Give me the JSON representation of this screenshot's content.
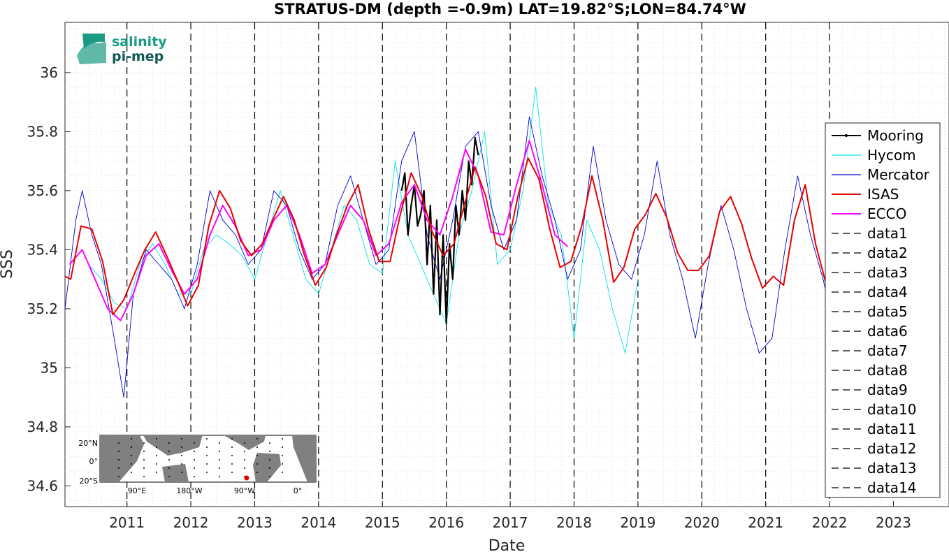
{
  "chart_data": {
    "type": "line",
    "title": "STRATUS-DM (depth =-0.9m) LAT=19.82°S;LON=84.74°W",
    "xlabel": "Date",
    "ylabel": "SSS",
    "xlim": [
      2010.03,
      2023.87
    ],
    "ylim": [
      34.53,
      36.17
    ],
    "x_ticks": [
      2011,
      2012,
      2013,
      2014,
      2015,
      2016,
      2017,
      2018,
      2019,
      2020,
      2021,
      2022,
      2023
    ],
    "x_tick_labels": [
      "2011",
      "2012",
      "2013",
      "2014",
      "2015",
      "2016",
      "2017",
      "2018",
      "2019",
      "2020",
      "2021",
      "2022",
      "2023"
    ],
    "y_ticks": [
      34.6,
      34.8,
      35.0,
      35.2,
      35.4,
      35.6,
      35.8,
      36.0
    ],
    "y_tick_labels": [
      "34.6",
      "34.8",
      "35",
      "35.2",
      "35.4",
      "35.6",
      "35.8",
      "36"
    ],
    "grid": "minor dotted",
    "legend_position": "right",
    "vlines": [
      2011,
      2012,
      2013,
      2014,
      2015,
      2016,
      2017,
      2018,
      2019,
      2020,
      2021,
      2022
    ],
    "series": [
      {
        "name": "Mooring",
        "color": "#000000",
        "style": "solid-dots",
        "x": [
          2015.3,
          2015.35,
          2015.4,
          2015.45,
          2015.5,
          2015.55,
          2015.6,
          2015.65,
          2015.7,
          2015.75,
          2015.8,
          2015.85,
          2015.9,
          2015.95,
          2016.0,
          2016.05,
          2016.1,
          2016.15,
          2016.2,
          2016.25,
          2016.3,
          2016.35,
          2016.4,
          2016.45,
          2016.5
        ],
        "y": [
          35.6,
          35.66,
          35.45,
          35.55,
          35.62,
          35.48,
          35.52,
          35.6,
          35.35,
          35.55,
          35.25,
          35.5,
          35.18,
          35.45,
          35.15,
          35.42,
          35.3,
          35.55,
          35.45,
          35.6,
          35.5,
          35.7,
          35.62,
          35.78,
          35.72
        ]
      },
      {
        "name": "Hycom",
        "color": "#00e5e5",
        "style": "solid",
        "x": [
          2010.4,
          2010.6,
          2010.8,
          2011.0,
          2011.2,
          2011.4,
          2011.6,
          2011.8,
          2012.0,
          2012.2,
          2012.4,
          2012.6,
          2012.8,
          2013.0,
          2013.2,
          2013.4,
          2013.6,
          2013.8,
          2014.0,
          2014.2,
          2014.4,
          2014.6,
          2014.8,
          2015.0,
          2015.2,
          2015.4,
          2015.6,
          2015.8,
          2016.0,
          2016.2,
          2016.4,
          2016.6,
          2016.8,
          2017.0,
          2017.2,
          2017.4,
          2017.6,
          2017.8,
          2018.0,
          2018.2,
          2018.4,
          2018.6,
          2018.8,
          2019.0
        ],
        "y": [
          35.35,
          35.3,
          35.22,
          35.2,
          35.35,
          35.42,
          35.35,
          35.25,
          35.25,
          35.4,
          35.45,
          35.42,
          35.38,
          35.3,
          35.45,
          35.6,
          35.45,
          35.3,
          35.25,
          35.4,
          35.55,
          35.5,
          35.35,
          35.32,
          35.7,
          35.45,
          35.35,
          35.25,
          35.15,
          35.45,
          35.6,
          35.8,
          35.35,
          35.4,
          35.6,
          35.95,
          35.55,
          35.45,
          35.1,
          35.5,
          35.4,
          35.2,
          35.05,
          35.3
        ]
      },
      {
        "name": "Mercator",
        "color": "#0000cd",
        "style": "solid",
        "x": [
          2010.03,
          2010.2,
          2010.3,
          2010.45,
          2010.6,
          2010.8,
          2010.95,
          2011.1,
          2011.3,
          2011.5,
          2011.7,
          2011.9,
          2012.1,
          2012.3,
          2012.5,
          2012.7,
          2012.9,
          2013.1,
          2013.3,
          2013.5,
          2013.7,
          2013.9,
          2014.1,
          2014.3,
          2014.5,
          2014.7,
          2014.9,
          2015.1,
          2015.3,
          2015.5,
          2015.7,
          2015.9,
          2016.1,
          2016.3,
          2016.5,
          2016.7,
          2016.9,
          2017.1,
          2017.3,
          2017.5,
          2017.7,
          2017.9,
          2018.1,
          2018.3,
          2018.5,
          2018.7,
          2018.9,
          2019.1,
          2019.3,
          2019.5,
          2019.7,
          2019.9,
          2020.1,
          2020.3,
          2020.5,
          2020.7,
          2020.9,
          2021.1,
          2021.3,
          2021.5,
          2021.7,
          2021.9,
          2022.0
        ],
        "y": [
          35.2,
          35.5,
          35.6,
          35.45,
          35.35,
          35.1,
          34.9,
          35.25,
          35.4,
          35.35,
          35.3,
          35.2,
          35.35,
          35.6,
          35.5,
          35.45,
          35.35,
          35.4,
          35.6,
          35.55,
          35.4,
          35.3,
          35.35,
          35.55,
          35.65,
          35.5,
          35.35,
          35.4,
          35.7,
          35.8,
          35.45,
          35.3,
          35.5,
          35.75,
          35.8,
          35.55,
          35.4,
          35.5,
          35.85,
          35.65,
          35.5,
          35.3,
          35.4,
          35.75,
          35.5,
          35.35,
          35.3,
          35.45,
          35.7,
          35.45,
          35.3,
          35.1,
          35.35,
          35.55,
          35.4,
          35.2,
          35.05,
          35.1,
          35.4,
          35.65,
          35.45,
          35.3,
          35.2
        ]
      },
      {
        "name": "ISAS",
        "color": "#e60000",
        "style": "solid",
        "x": [
          2010.03,
          2010.12,
          2010.28,
          2010.45,
          2010.62,
          2010.78,
          2010.95,
          2011.12,
          2011.28,
          2011.45,
          2011.62,
          2011.78,
          2011.95,
          2012.12,
          2012.28,
          2012.45,
          2012.62,
          2012.78,
          2012.95,
          2013.12,
          2013.28,
          2013.45,
          2013.62,
          2013.78,
          2013.95,
          2014.12,
          2014.28,
          2014.45,
          2014.62,
          2014.78,
          2014.95,
          2015.12,
          2015.28,
          2015.45,
          2015.62,
          2015.78,
          2015.95,
          2016.12,
          2016.28,
          2016.45,
          2016.62,
          2016.78,
          2016.95,
          2017.12,
          2017.28,
          2017.45,
          2017.62,
          2017.78,
          2017.95,
          2018.12,
          2018.28,
          2018.45,
          2018.62,
          2018.78,
          2018.95,
          2019.12,
          2019.28,
          2019.45,
          2019.62,
          2019.78,
          2019.95,
          2020.12,
          2020.28,
          2020.45,
          2020.62,
          2020.78,
          2020.95,
          2021.12,
          2021.28,
          2021.45,
          2021.62,
          2021.78,
          2021.95
        ],
        "y": [
          35.31,
          35.3,
          35.48,
          35.47,
          35.36,
          35.18,
          35.23,
          35.32,
          35.4,
          35.46,
          35.38,
          35.3,
          35.21,
          35.28,
          35.48,
          35.6,
          35.54,
          35.43,
          35.38,
          35.42,
          35.5,
          35.58,
          35.5,
          35.38,
          35.28,
          35.34,
          35.45,
          35.55,
          35.62,
          35.47,
          35.36,
          35.36,
          35.52,
          35.66,
          35.58,
          35.46,
          35.38,
          35.42,
          35.55,
          35.68,
          35.58,
          35.42,
          35.4,
          35.58,
          35.71,
          35.64,
          35.47,
          35.34,
          35.36,
          35.48,
          35.65,
          35.5,
          35.29,
          35.34,
          35.47,
          35.52,
          35.59,
          35.51,
          35.39,
          35.33,
          35.33,
          35.38,
          35.53,
          35.58,
          35.49,
          35.37,
          35.27,
          35.31,
          35.28,
          35.5,
          35.62,
          35.42,
          35.28
        ]
      },
      {
        "name": "ECCO",
        "color": "#ff00ff",
        "style": "solid",
        "x": [
          2010.1,
          2010.3,
          2010.5,
          2010.7,
          2010.9,
          2011.1,
          2011.3,
          2011.5,
          2011.7,
          2011.9,
          2012.1,
          2012.3,
          2012.5,
          2012.7,
          2012.9,
          2013.1,
          2013.3,
          2013.5,
          2013.7,
          2013.9,
          2014.1,
          2014.3,
          2014.5,
          2014.7,
          2014.9,
          2015.1,
          2015.3,
          2015.5,
          2015.7,
          2015.9,
          2016.1,
          2016.3,
          2016.5,
          2016.7,
          2016.9,
          2017.1,
          2017.3,
          2017.5,
          2017.7,
          2017.9
        ],
        "y": [
          35.35,
          35.4,
          35.3,
          35.2,
          35.16,
          35.25,
          35.38,
          35.42,
          35.33,
          35.25,
          35.3,
          35.45,
          35.55,
          35.48,
          35.38,
          35.4,
          35.5,
          35.55,
          35.45,
          35.32,
          35.35,
          35.45,
          35.55,
          35.5,
          35.38,
          35.42,
          35.56,
          35.62,
          35.5,
          35.45,
          35.58,
          35.74,
          35.65,
          35.46,
          35.45,
          35.62,
          35.77,
          35.62,
          35.45,
          35.41
        ]
      }
    ],
    "legend_entries": [
      "Mooring",
      "Hycom",
      "Mercator",
      "ISAS",
      "ECCO",
      "data1",
      "data2",
      "data3",
      "data4",
      "data5",
      "data6",
      "data7",
      "data8",
      "data9",
      "data10",
      "data11",
      "data12",
      "data13",
      "data14"
    ]
  },
  "logo": {
    "line1": "salinity",
    "line2": "pi-mep"
  },
  "inset_map": {
    "lat_labels": [
      "20°N",
      "0°",
      "20°S"
    ],
    "lon_labels": [
      "90°E",
      "180°W",
      "90°W",
      "0°"
    ],
    "marker_color": "#e60000"
  }
}
